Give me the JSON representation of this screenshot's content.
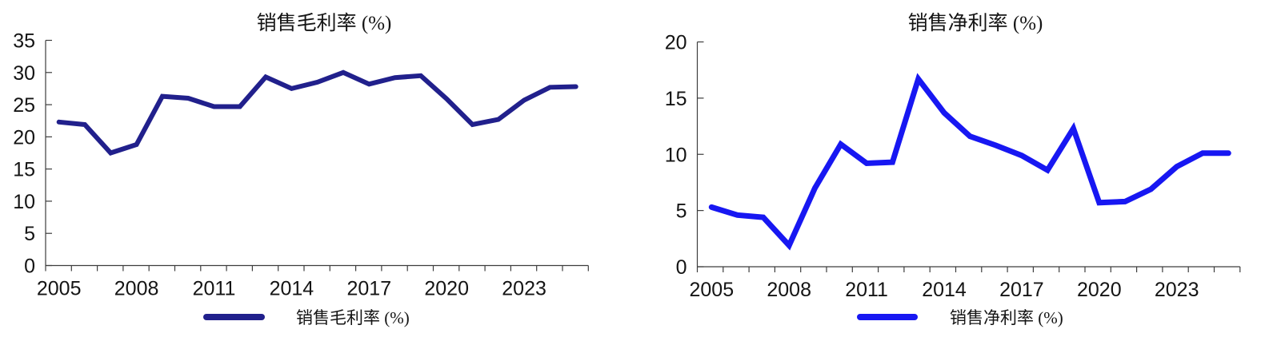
{
  "chart_data": [
    {
      "type": "line",
      "title": "销售毛利率 (%)",
      "xlabel": "",
      "ylabel": "",
      "x": [
        2005,
        2006,
        2007,
        2008,
        2009,
        2010,
        2011,
        2012,
        2013,
        2014,
        2015,
        2016,
        2017,
        2018,
        2019,
        2020,
        2021,
        2022,
        2023,
        2024,
        2025
      ],
      "xticklabels": [
        "2005",
        "2008",
        "2011",
        "2014",
        "2017",
        "2020",
        "2023"
      ],
      "ylim": [
        0,
        35
      ],
      "yticks": [
        0,
        5,
        10,
        15,
        20,
        25,
        30,
        35
      ],
      "grid": false,
      "legend_position": "bottom",
      "legend": [
        "销售毛利率 (%)"
      ],
      "series": [
        {
          "name": "销售毛利率 (%)",
          "color": "#21208c",
          "values": [
            22.3,
            21.9,
            17.5,
            18.8,
            26.3,
            26.0,
            24.7,
            24.7,
            29.3,
            27.5,
            28.5,
            30.0,
            28.2,
            29.2,
            29.5,
            25.9,
            21.9,
            22.7,
            25.7,
            27.7,
            27.8
          ]
        }
      ]
    },
    {
      "type": "line",
      "title": "销售净利率 (%)",
      "xlabel": "",
      "ylabel": "",
      "x": [
        2005,
        2006,
        2007,
        2008,
        2009,
        2010,
        2011,
        2012,
        2013,
        2014,
        2015,
        2016,
        2017,
        2018,
        2019,
        2020,
        2021,
        2022,
        2023,
        2024,
        2025
      ],
      "xticklabels": [
        "2005",
        "2008",
        "2011",
        "2014",
        "2017",
        "2020",
        "2023"
      ],
      "ylim": [
        0,
        20
      ],
      "yticks": [
        0,
        5,
        10,
        15,
        20
      ],
      "grid": false,
      "legend_position": "bottom",
      "legend": [
        "销售净利率 (%)"
      ],
      "series": [
        {
          "name": "销售净利率 (%)",
          "color": "#1717f2",
          "values": [
            5.3,
            4.6,
            4.4,
            1.9,
            7.0,
            10.9,
            9.2,
            9.3,
            16.7,
            13.7,
            11.6,
            10.8,
            9.9,
            8.6,
            12.3,
            5.7,
            5.8,
            6.9,
            8.9,
            10.1,
            10.1
          ]
        }
      ]
    }
  ]
}
